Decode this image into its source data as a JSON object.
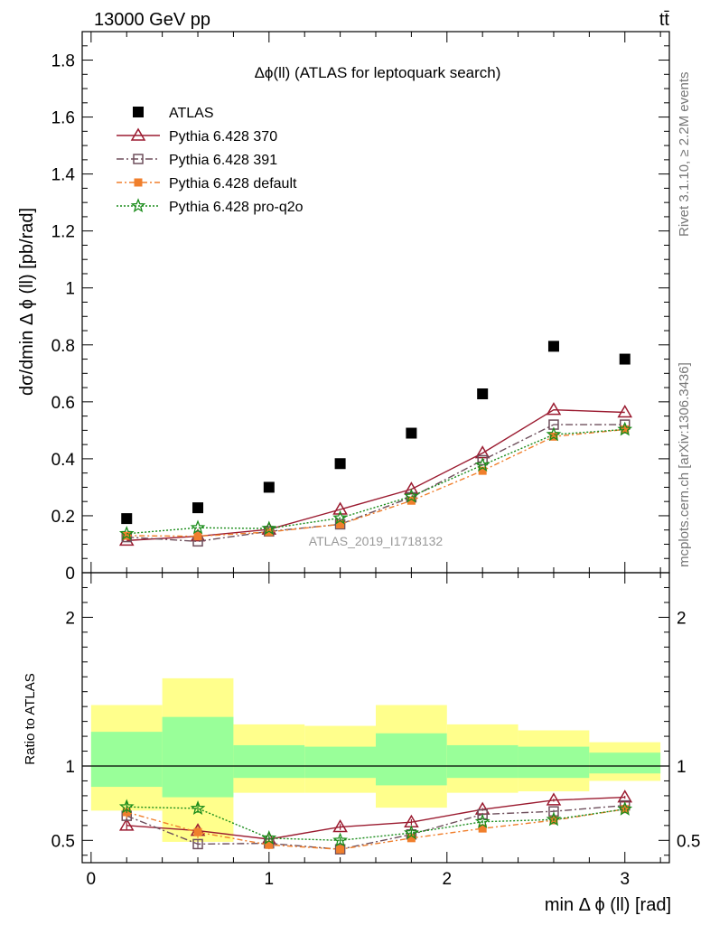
{
  "header": {
    "left": "13000 GeV pp",
    "right": "tt̄"
  },
  "side_text": {
    "rivet": "Rivet 3.1.10, ≥ 2.2M events",
    "mcplots": "mcplots.cern.ch [arXiv:1306.3436]"
  },
  "chart_data": [
    {
      "type": "scatter",
      "panel": "main",
      "title": "Δϕ(ll) (ATLAS for leptoquark search)",
      "watermark": "ATLAS_2019_I1718132",
      "ylabel": "dσ/dmin Δ ϕ (ll) [pb/rad]",
      "xlim": [
        -0.05,
        3.25
      ],
      "ylim": [
        0,
        1.9
      ],
      "yticks": [
        0,
        0.2,
        0.4,
        0.6,
        0.8,
        1,
        1.2,
        1.4,
        1.6,
        1.8
      ],
      "ytick_labels": [
        "0",
        "0.2",
        "0.4",
        "0.6",
        "0.8",
        "1",
        "1.2",
        "1.4",
        "1.6",
        "1.8"
      ],
      "legend_position": "top-left",
      "x": [
        0.2,
        0.6,
        1.0,
        1.4,
        1.8,
        2.2,
        2.6,
        3.0
      ],
      "series": [
        {
          "name": "ATLAS",
          "color": "#000000",
          "style": "data",
          "marker": "square-filled",
          "values": [
            0.19,
            0.228,
            0.3,
            0.383,
            0.49,
            0.628,
            0.795,
            0.75
          ]
        },
        {
          "name": "Pythia 6.428 370",
          "color": "#9b1b30",
          "style": "solid",
          "marker": "triangle-open",
          "values": [
            0.113,
            0.128,
            0.152,
            0.222,
            0.293,
            0.42,
            0.572,
            0.563
          ]
        },
        {
          "name": "Pythia 6.428 391",
          "color": "#6e4f5c",
          "style": "dashdot",
          "marker": "square-open",
          "values": [
            0.125,
            0.11,
            0.145,
            0.17,
            0.265,
            0.395,
            0.52,
            0.52
          ]
        },
        {
          "name": "Pythia 6.428 default",
          "color": "#f07f2c",
          "style": "dashdot2",
          "marker": "square-filled-small",
          "values": [
            0.13,
            0.128,
            0.143,
            0.17,
            0.253,
            0.358,
            0.478,
            0.503
          ]
        },
        {
          "name": "Pythia 6.428 pro-q2o",
          "color": "#1a8c1a",
          "style": "dotted",
          "marker": "star",
          "values": [
            0.137,
            0.158,
            0.155,
            0.192,
            0.268,
            0.378,
            0.485,
            0.503
          ]
        }
      ]
    },
    {
      "type": "scatter",
      "panel": "ratio",
      "ylabel": "Ratio to ATLAS",
      "xlabel": "min Δ ϕ (ll) [rad]",
      "xlim": [
        -0.05,
        3.25
      ],
      "ylim": [
        0.35,
        2.3
      ],
      "yticks": [
        0.5,
        1,
        2
      ],
      "ytick_labels": [
        "0.5",
        "1",
        "2"
      ],
      "xticks": [
        0,
        1,
        2,
        3
      ],
      "xtick_labels": [
        "0",
        "1",
        "2",
        "3"
      ],
      "reference_line": 1,
      "uncertainty_bands": {
        "bins": [
          0,
          0.4,
          0.8,
          1.2,
          1.6,
          2.0,
          2.4,
          2.8,
          3.2
        ],
        "total_color": "#ffff8c",
        "stat_color": "#99ff99",
        "total_low": [
          0.7,
          0.49,
          0.82,
          0.82,
          0.72,
          0.82,
          0.83,
          0.9
        ],
        "total_high": [
          1.41,
          1.59,
          1.28,
          1.27,
          1.41,
          1.28,
          1.24,
          1.16
        ],
        "stat_low": [
          0.86,
          0.79,
          0.92,
          0.92,
          0.87,
          0.92,
          0.92,
          0.95
        ],
        "stat_high": [
          1.23,
          1.33,
          1.14,
          1.13,
          1.22,
          1.14,
          1.13,
          1.09
        ]
      },
      "x": [
        0.2,
        0.6,
        1.0,
        1.4,
        1.8,
        2.2,
        2.6,
        3.0
      ],
      "series": [
        {
          "name": "Pythia 6.428 370",
          "color": "#9b1b30",
          "marker": "triangle-open",
          "values": [
            0.6,
            0.565,
            0.508,
            0.59,
            0.622,
            0.708,
            0.77,
            0.79
          ],
          "errors": [
            0.03,
            0.02,
            0.01,
            0.02,
            0.02,
            0.01,
            0.01,
            0.01
          ]
        },
        {
          "name": "Pythia 6.428 391",
          "color": "#6e4f5c",
          "marker": "square-open",
          "values": [
            0.665,
            0.475,
            0.48,
            0.44,
            0.54,
            0.675,
            0.695,
            0.735
          ],
          "errors": [
            0.03,
            0.03,
            0.02,
            0.03,
            0.02,
            0.01,
            0.01,
            0.01
          ]
        },
        {
          "name": "Pythia 6.428 default",
          "color": "#f07f2c",
          "marker": "square-filled-small",
          "values": [
            0.69,
            0.555,
            0.47,
            0.44,
            0.515,
            0.58,
            0.635,
            0.71
          ],
          "errors": [
            0.04,
            0.04,
            0.03,
            0.03,
            0.02,
            0.02,
            0.01,
            0.01
          ]
        },
        {
          "name": "Pythia 6.428 pro-q2o",
          "color": "#1a8c1a",
          "marker": "star",
          "values": [
            0.725,
            0.715,
            0.515,
            0.5,
            0.55,
            0.625,
            0.64,
            0.71
          ],
          "errors": [
            0.04,
            0.03,
            0.02,
            0.02,
            0.02,
            0.01,
            0.01,
            0.01
          ]
        }
      ]
    }
  ]
}
